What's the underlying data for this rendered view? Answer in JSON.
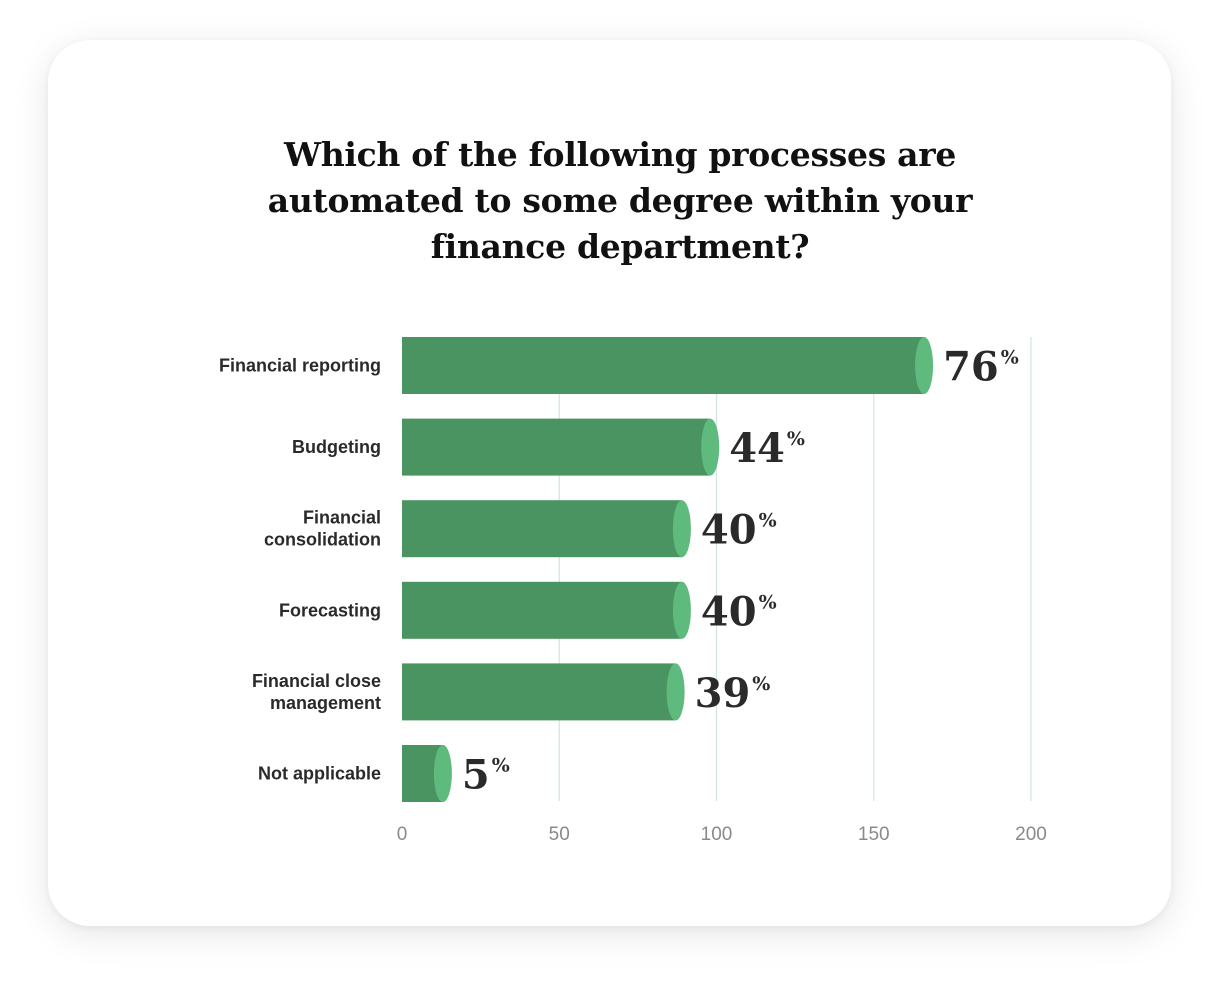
{
  "colors": {
    "bar": "#4a9462",
    "bar_cap": "#5fba7d",
    "grid": "#cfe6dc",
    "card_bg": "#ffffff"
  },
  "chart_data": {
    "type": "bar",
    "orientation": "horizontal",
    "title_lines": [
      "Which of the following processes are",
      "automated to some degree within your",
      "finance department?"
    ],
    "categories": [
      [
        "Financial reporting"
      ],
      [
        "Budgeting"
      ],
      [
        "Financial",
        "consolidation"
      ],
      [
        "Forecasting"
      ],
      [
        "Financial close",
        "management"
      ],
      [
        "Not applicable"
      ]
    ],
    "bar_lengths": [
      166,
      98,
      89,
      89,
      87,
      13
    ],
    "value_labels": [
      "76",
      "44",
      "40",
      "40",
      "39",
      "5"
    ],
    "value_suffix": "%",
    "xticks": [
      "0",
      "50",
      "100",
      "150",
      "200"
    ],
    "xlim": [
      0,
      200
    ],
    "grid": true,
    "legend": "none"
  }
}
